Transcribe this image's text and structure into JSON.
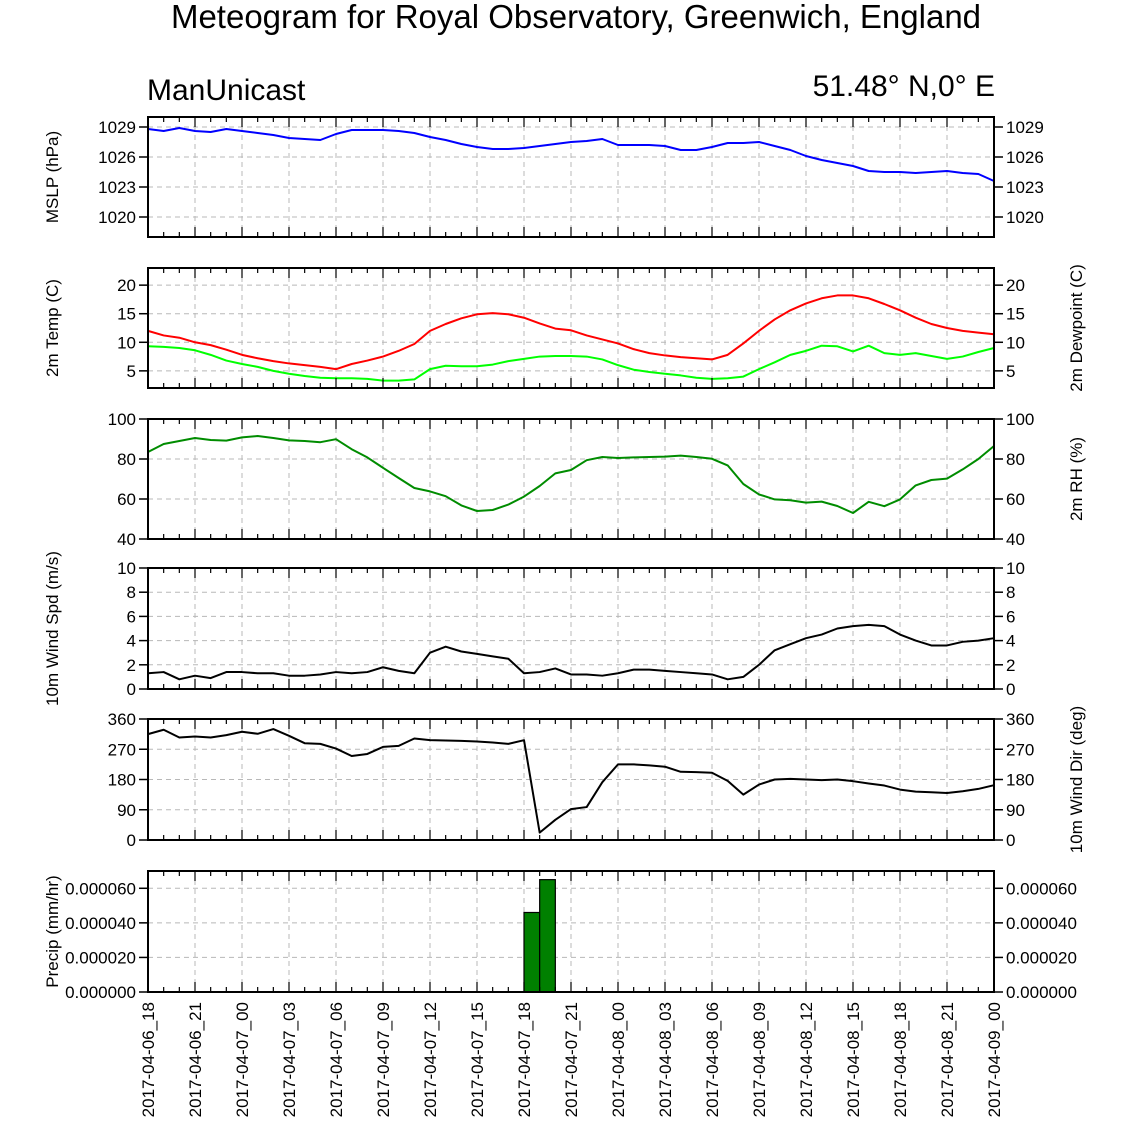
{
  "title": "Meteogram for Royal Observatory, Greenwich, England",
  "model_label": "ManUnicast",
  "location_label": "51.48° N,0° E",
  "x_ticks": [
    "2017-04-06_18",
    "2017-04-06_21",
    "2017-04-07_00",
    "2017-04-07_03",
    "2017-04-07_06",
    "2017-04-07_09",
    "2017-04-07_12",
    "2017-04-07_15",
    "2017-04-07_18",
    "2017-04-07_21",
    "2017-04-08_00",
    "2017-04-08_03",
    "2017-04-08_06",
    "2017-04-08_09",
    "2017-04-08_12",
    "2017-04-08_15",
    "2017-04-08_18",
    "2017-04-08_21",
    "2017-04-09_00"
  ],
  "chart_data": [
    {
      "type": "line",
      "id": "mslp",
      "ylabel_left": "MSLP (hPa)",
      "ylim": [
        1018,
        1030
      ],
      "yticks": [
        1020,
        1023,
        1026,
        1029
      ],
      "ytick_labels_left": [
        "1020",
        "1023",
        "1026",
        "1029"
      ],
      "ytick_labels_right": [
        "1020",
        "1023",
        "1026",
        "1029"
      ],
      "x_start": "2017-04-06_18",
      "x_step_hours": 1,
      "series": [
        {
          "color": "#0000ff",
          "values": [
            1028.8,
            1028.6,
            1028.9,
            1028.6,
            1028.5,
            1028.8,
            1028.6,
            1028.4,
            1028.2,
            1027.9,
            1027.8,
            1027.7,
            1028.3,
            1028.7,
            1028.7,
            1028.7,
            1028.6,
            1028.4,
            1028.0,
            1027.7,
            1027.3,
            1027.0,
            1026.8,
            1026.8,
            1026.9,
            1027.1,
            1027.3,
            1027.5,
            1027.6,
            1027.8,
            1027.2,
            1027.2,
            1027.2,
            1027.1,
            1026.7,
            1026.7,
            1027.0,
            1027.4,
            1027.4,
            1027.5,
            1027.1,
            1026.7,
            1026.1,
            1025.7,
            1025.4,
            1025.1,
            1024.6,
            1024.5,
            1024.5,
            1024.4,
            1024.5,
            1024.6,
            1024.4,
            1024.3,
            1023.6
          ]
        }
      ]
    },
    {
      "type": "line",
      "id": "temp",
      "ylabel_left": "2m Temp (C)",
      "ylabel_right": "2m Dewpoint (C)",
      "ylim": [
        2,
        23
      ],
      "yticks": [
        5,
        10,
        15,
        20
      ],
      "ytick_labels_left": [
        "5",
        "10",
        "15",
        "20"
      ],
      "ytick_labels_right": [
        "5",
        "10",
        "15",
        "20"
      ],
      "x_start": "2017-04-06_18",
      "x_step_hours": 1,
      "series": [
        {
          "name": "2m Temp",
          "color": "#ff0000",
          "values": [
            12.0,
            11.2,
            10.8,
            10.0,
            9.5,
            8.7,
            7.8,
            7.2,
            6.7,
            6.3,
            6.0,
            5.7,
            5.3,
            6.2,
            6.8,
            7.5,
            8.5,
            9.7,
            12.0,
            13.2,
            14.2,
            14.9,
            15.1,
            14.9,
            14.3,
            13.3,
            12.4,
            12.1,
            11.2,
            10.5,
            9.8,
            8.8,
            8.1,
            7.7,
            7.4,
            7.2,
            7.0,
            7.8,
            9.8,
            12.0,
            14.0,
            15.6,
            16.8,
            17.7,
            18.2,
            18.2,
            17.7,
            16.7,
            15.6,
            14.3,
            13.2,
            12.5,
            12.0,
            11.7,
            11.4
          ]
        },
        {
          "name": "2m Dewpoint",
          "color": "#00ff00",
          "values": [
            9.3,
            9.2,
            9.0,
            8.6,
            7.8,
            6.8,
            6.2,
            5.7,
            5.0,
            4.5,
            4.1,
            3.8,
            3.7,
            3.7,
            3.6,
            3.3,
            3.3,
            3.5,
            5.3,
            5.9,
            5.8,
            5.8,
            6.1,
            6.7,
            7.1,
            7.5,
            7.6,
            7.6,
            7.5,
            7.0,
            6.0,
            5.2,
            4.8,
            4.5,
            4.2,
            3.8,
            3.6,
            3.7,
            4.0,
            5.3,
            6.5,
            7.8,
            8.5,
            9.4,
            9.3,
            8.4,
            9.4,
            8.1,
            7.8,
            8.1,
            7.6,
            7.1,
            7.5,
            8.3,
            9.0
          ]
        }
      ]
    },
    {
      "type": "line",
      "id": "rh",
      "ylabel_right": "2m RH (%)",
      "ylim": [
        40,
        100
      ],
      "yticks": [
        40,
        60,
        80,
        100
      ],
      "ytick_labels_left": [
        "40",
        "60",
        "80",
        "100"
      ],
      "ytick_labels_right": [
        "40",
        "60",
        "80",
        "100"
      ],
      "x_start": "2017-04-06_18",
      "x_step_hours": 1,
      "series": [
        {
          "color": "#008c00",
          "values": [
            83.5,
            87.5,
            89.0,
            90.5,
            89.5,
            89.2,
            90.8,
            91.5,
            90.5,
            89.3,
            89.0,
            88.4,
            89.9,
            84.9,
            80.8,
            75.6,
            70.5,
            65.5,
            63.8,
            61.4,
            56.8,
            54.0,
            54.5,
            57.2,
            61.2,
            66.5,
            72.8,
            74.5,
            79.4,
            81.0,
            80.5,
            80.8,
            81.0,
            81.2,
            81.7,
            81.0,
            80.1,
            76.8,
            67.5,
            62.3,
            59.8,
            59.4,
            58.2,
            58.7,
            56.5,
            53.0,
            58.6,
            56.4,
            59.8,
            66.8,
            69.5,
            70.2,
            74.8,
            80.0,
            86.5
          ]
        }
      ]
    },
    {
      "type": "line",
      "id": "wspd",
      "ylabel_left": "10m Wind Spd (m/s)",
      "ylim": [
        0,
        10
      ],
      "yticks": [
        0,
        2,
        4,
        6,
        8,
        10
      ],
      "ytick_labels_left": [
        "0",
        "2",
        "4",
        "6",
        "8",
        "10"
      ],
      "ytick_labels_right": [
        "0",
        "2",
        "4",
        "6",
        "8",
        "10"
      ],
      "x_start": "2017-04-06_18",
      "x_step_hours": 1,
      "series": [
        {
          "color": "#000000",
          "values": [
            1.3,
            1.4,
            0.8,
            1.1,
            0.9,
            1.4,
            1.4,
            1.3,
            1.3,
            1.1,
            1.1,
            1.2,
            1.4,
            1.3,
            1.4,
            1.8,
            1.5,
            1.3,
            3.0,
            3.5,
            3.1,
            2.9,
            2.7,
            2.5,
            1.3,
            1.4,
            1.7,
            1.2,
            1.2,
            1.1,
            1.3,
            1.6,
            1.6,
            1.5,
            1.4,
            1.3,
            1.2,
            0.8,
            1.0,
            2.0,
            3.2,
            3.7,
            4.2,
            4.5,
            5.0,
            5.2,
            5.3,
            5.2,
            4.5,
            4.0,
            3.6,
            3.6,
            3.9,
            4.0,
            4.2
          ]
        }
      ]
    },
    {
      "type": "line",
      "id": "wdir",
      "ylabel_right": "10m Wind Dir (deg)",
      "ylim": [
        0,
        360
      ],
      "yticks": [
        0,
        90,
        180,
        270,
        360
      ],
      "ytick_labels_left": [
        "0",
        "90",
        "180",
        "270",
        "360"
      ],
      "ytick_labels_right": [
        "0",
        "90",
        "180",
        "270",
        "360"
      ],
      "x_start": "2017-04-06_18",
      "x_step_hours": 1,
      "series": [
        {
          "color": "#000000",
          "values": [
            315,
            328,
            305,
            308,
            305,
            312,
            322,
            316,
            330,
            310,
            288,
            286,
            272,
            250,
            256,
            277,
            280,
            302,
            297,
            296,
            295,
            293,
            290,
            286,
            297,
            22,
            60,
            92,
            98,
            172,
            225,
            225,
            222,
            218,
            203,
            202,
            200,
            176,
            135,
            165,
            180,
            182,
            180,
            178,
            180,
            175,
            168,
            162,
            150,
            144,
            142,
            140,
            145,
            152,
            163
          ]
        }
      ]
    },
    {
      "type": "bar",
      "id": "precip",
      "ylabel_left": "Precip (mm/hr)",
      "ylim": [
        0,
        7e-05
      ],
      "yticks": [
        0,
        2e-05,
        4e-05,
        6e-05
      ],
      "ytick_labels_left": [
        "0.000000",
        "0.000020",
        "0.000040",
        "0.000060"
      ],
      "ytick_labels_right": [
        "0.000000",
        "0.000020",
        "0.000040",
        "0.000060"
      ],
      "x_start": "2017-04-06_18",
      "x_step_hours": 1,
      "bar_color": "#008000",
      "bars": [
        {
          "hour_offset": 25,
          "value": 4.6e-05
        },
        {
          "hour_offset": 26,
          "value": 6.5e-05
        }
      ]
    }
  ]
}
